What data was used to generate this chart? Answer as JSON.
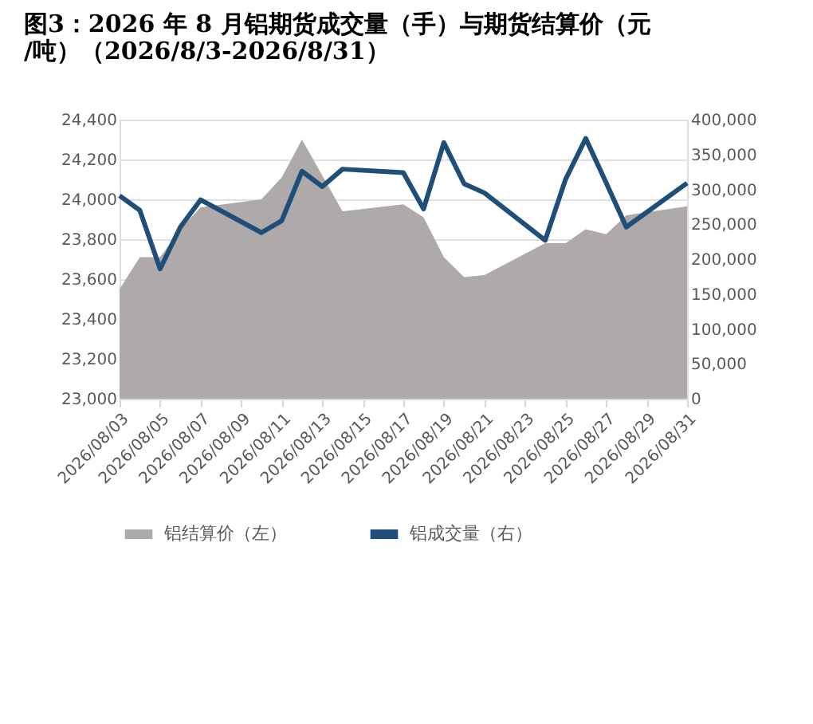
{
  "chart_data": {
    "type": "area",
    "title": "图3：2026 年 8 月铝期货成交量（手）与期货结算价（元/吨）（2026/8/3-2026/8/31）",
    "x": [
      "2026-08-03",
      "2026-08-04",
      "2026-08-05",
      "2026-08-06",
      "2026-08-07",
      "2026-08-10",
      "2026-08-11",
      "2026-08-12",
      "2026-08-13",
      "2026-08-14",
      "2026-08-17",
      "2026-08-18",
      "2026-08-19",
      "2026-08-20",
      "2026-08-21",
      "2026-08-24",
      "2026-08-25",
      "2026-08-26",
      "2026-08-27",
      "2026-08-28",
      "2026-08-31"
    ],
    "series": [
      {
        "name": "铝结算价（左）",
        "color": "#aeaaaa",
        "values": [
          23550,
          23710,
          23710,
          23850,
          23960,
          24000,
          24110,
          24300,
          24120,
          23940,
          23975,
          23910,
          23710,
          23610,
          23620,
          23780,
          23780,
          23850,
          23825,
          23920,
          23965
        ]
      },
      {
        "name": "铝成交量（右）",
        "type": "line",
        "axis": "y2",
        "color": "#1f4e79",
        "values": [
          291000,
          270000,
          186000,
          246000,
          285000,
          238000,
          255000,
          326000,
          304000,
          329000,
          324000,
          272000,
          367000,
          308000,
          295000,
          227000,
          314000,
          373000,
          310000,
          246000,
          309000
        ]
      }
    ],
    "xlim": [
      "2026-08-03",
      "2026-08-31"
    ],
    "xticks": [
      {
        "value": "2026-08-03",
        "label": "2026/08/03"
      },
      {
        "value": "2026-08-05",
        "label": "2026/08/05"
      },
      {
        "value": "2026-08-07",
        "label": "2026/08/07"
      },
      {
        "value": "2026-08-09",
        "label": "2026/08/09"
      },
      {
        "value": "2026-08-11",
        "label": "2026/08/11"
      },
      {
        "value": "2026-08-13",
        "label": "2026/08/13"
      },
      {
        "value": "2026-08-15",
        "label": "2026/08/15"
      },
      {
        "value": "2026-08-17",
        "label": "2026/08/17"
      },
      {
        "value": "2026-08-19",
        "label": "2026/08/19"
      },
      {
        "value": "2026-08-21",
        "label": "2026/08/21"
      },
      {
        "value": "2026-08-23",
        "label": "2026/08/23"
      },
      {
        "value": "2026-08-25",
        "label": "2026/08/25"
      },
      {
        "value": "2026-08-27",
        "label": "2026/08/27"
      },
      {
        "value": "2026-08-29",
        "label": "2026/08/29"
      },
      {
        "value": "2026-08-31",
        "label": "2026/08/31"
      }
    ],
    "ylim": [
      23000,
      24400
    ],
    "yticks": [
      {
        "value": 23000,
        "label": "23,000"
      },
      {
        "value": 23200,
        "label": "23,200"
      },
      {
        "value": 23400,
        "label": "23,400"
      },
      {
        "value": 23600,
        "label": "23,600"
      },
      {
        "value": 23800,
        "label": "23,800"
      },
      {
        "value": 24000,
        "label": "24,000"
      },
      {
        "value": 24200,
        "label": "24,200"
      },
      {
        "value": 24400,
        "label": "24,400"
      }
    ],
    "y2lim": [
      0,
      400000
    ],
    "y2ticks": [
      {
        "value": 0,
        "label": "0"
      },
      {
        "value": 50000,
        "label": "50,000"
      },
      {
        "value": 100000,
        "label": "100,000"
      },
      {
        "value": 150000,
        "label": "150,000"
      },
      {
        "value": 200000,
        "label": "200,000"
      },
      {
        "value": 250000,
        "label": "250,000"
      },
      {
        "value": 300000,
        "label": "300,000"
      },
      {
        "value": 350000,
        "label": "350,000"
      },
      {
        "value": 400000,
        "label": "400,000"
      }
    ],
    "grid": "y",
    "legend": "bottom",
    "marker": "none",
    "line_style": "solid"
  }
}
